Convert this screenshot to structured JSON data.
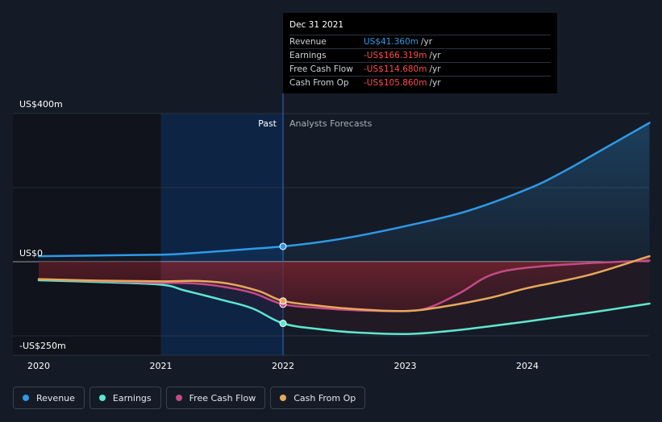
{
  "tooltip": {
    "date": "Dec 31 2021",
    "rows": [
      {
        "name": "Revenue",
        "value": "US$41.360m",
        "unit": "/yr",
        "color": "#2e9ae8"
      },
      {
        "name": "Earnings",
        "value": "-US$166.319m",
        "unit": "/yr",
        "color": "#ff4b4b"
      },
      {
        "name": "Free Cash Flow",
        "value": "-US$114.680m",
        "unit": "/yr",
        "color": "#ff4b4b"
      },
      {
        "name": "Cash From Op",
        "value": "-US$105.860m",
        "unit": "/yr",
        "color": "#ff4b4b"
      }
    ]
  },
  "labels": {
    "past": "Past",
    "forecast": "Analysts Forecasts"
  },
  "legend": [
    {
      "name": "Revenue",
      "color": "#2e9ae8"
    },
    {
      "name": "Earnings",
      "color": "#5ee8d0"
    },
    {
      "name": "Free Cash Flow",
      "color": "#c44a86"
    },
    {
      "name": "Cash From Op",
      "color": "#e8a85a"
    }
  ],
  "chart_data": {
    "type": "line",
    "title": "",
    "xlabel": "",
    "ylabel": "",
    "y_tick_labels": [
      "US$400m",
      "US$0",
      "-US$250m"
    ],
    "x_tick_labels": [
      "2020",
      "2021",
      "2022",
      "2023",
      "2024"
    ],
    "xlim": [
      2020.0,
      2025.0
    ],
    "ylim": [
      -250,
      400
    ],
    "past_end": 2022.0,
    "highlight_start": 2021.0,
    "gridlines": [
      400,
      200,
      0,
      -200
    ],
    "series": [
      {
        "name": "Revenue",
        "color": "#2e9ae8",
        "points": [
          [
            2020.0,
            15
          ],
          [
            2020.5,
            17
          ],
          [
            2021.0,
            19
          ],
          [
            2021.2,
            22
          ],
          [
            2021.5,
            29
          ],
          [
            2021.75,
            35
          ],
          [
            2022.0,
            41.36
          ],
          [
            2022.3,
            53
          ],
          [
            2022.6,
            69
          ],
          [
            2023.0,
            96
          ],
          [
            2023.5,
            136
          ],
          [
            2024.0,
            196
          ],
          [
            2024.3,
            244
          ],
          [
            2024.6,
            300
          ],
          [
            2025.0,
            375
          ]
        ]
      },
      {
        "name": "Earnings",
        "color": "#5ee8d0",
        "points": [
          [
            2020.0,
            -50
          ],
          [
            2020.5,
            -55
          ],
          [
            2021.0,
            -62
          ],
          [
            2021.2,
            -78
          ],
          [
            2021.5,
            -103
          ],
          [
            2021.75,
            -126
          ],
          [
            2022.0,
            -166.319
          ],
          [
            2022.3,
            -182
          ],
          [
            2022.6,
            -191
          ],
          [
            2023.0,
            -195
          ],
          [
            2023.3,
            -189
          ],
          [
            2023.6,
            -178
          ],
          [
            2024.0,
            -161
          ],
          [
            2024.5,
            -138
          ],
          [
            2025.0,
            -113
          ]
        ]
      },
      {
        "name": "Free Cash Flow",
        "color": "#c44a86",
        "points": [
          [
            2020.0,
            -47
          ],
          [
            2020.5,
            -52
          ],
          [
            2021.0,
            -57
          ],
          [
            2021.25,
            -58
          ],
          [
            2021.5,
            -67
          ],
          [
            2021.75,
            -84
          ],
          [
            2022.0,
            -114.68
          ],
          [
            2022.3,
            -125
          ],
          [
            2022.6,
            -131
          ],
          [
            2023.0,
            -133
          ],
          [
            2023.2,
            -123
          ],
          [
            2023.45,
            -84
          ],
          [
            2023.7,
            -36
          ],
          [
            2024.0,
            -16
          ],
          [
            2024.5,
            -4
          ],
          [
            2025.0,
            3
          ]
        ]
      },
      {
        "name": "Cash From Op",
        "color": "#e8a85a",
        "points": [
          [
            2020.0,
            -47
          ],
          [
            2020.5,
            -51
          ],
          [
            2021.0,
            -53
          ],
          [
            2021.3,
            -52
          ],
          [
            2021.55,
            -59
          ],
          [
            2021.8,
            -79
          ],
          [
            2022.0,
            -105.86
          ],
          [
            2022.3,
            -119
          ],
          [
            2022.6,
            -128
          ],
          [
            2023.0,
            -133
          ],
          [
            2023.3,
            -122
          ],
          [
            2023.7,
            -97
          ],
          [
            2024.0,
            -71
          ],
          [
            2024.5,
            -36
          ],
          [
            2025.0,
            15
          ]
        ]
      }
    ]
  }
}
